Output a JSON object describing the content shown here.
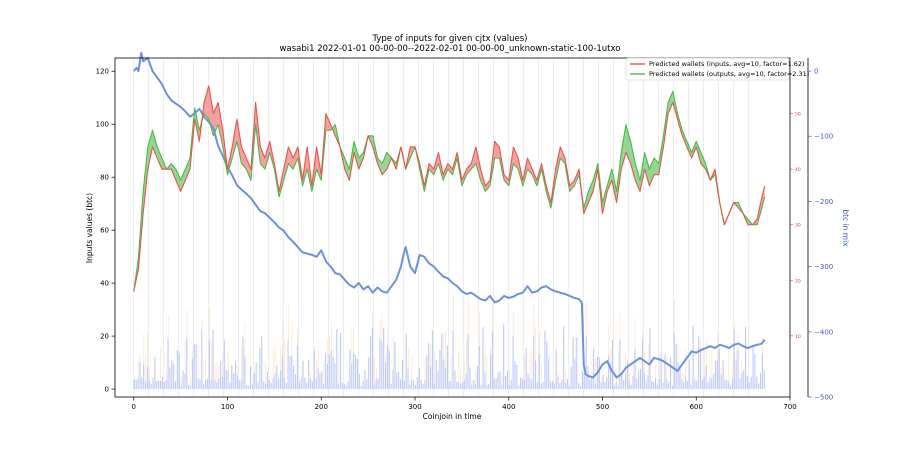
{
  "chart_data": {
    "type": "line",
    "title": "Type of inputs for given cjtx (values)",
    "subtitle": "wasabi1 2022-01-01 00-00-00--2022-02-01 00-00-00_unknown-static-100-1utxo",
    "xlabel": "Coinjoin in time",
    "ylabel": "Inputs values (btc)",
    "ylabel_right_inner": "",
    "ylabel_right_outer": "btc in mix",
    "xlim": [
      -20,
      700
    ],
    "ylim": [
      -3,
      125
    ],
    "ylim_right_inner": [
      -1,
      60
    ],
    "ylim_right_outer": [
      -500,
      20
    ],
    "x_ticks": [
      "0",
      "100",
      "200",
      "300",
      "400",
      "500",
      "600",
      "700"
    ],
    "y_ticks": [
      "0",
      "20",
      "40",
      "60",
      "80",
      "100",
      "120"
    ],
    "y_right_inner_ticks": [
      "10",
      "20",
      "30",
      "40",
      "50"
    ],
    "y_right_outer_ticks": [
      "0",
      "−100",
      "−200",
      "−300",
      "−400",
      "−500"
    ],
    "grid": "vertical lines",
    "legend_position": "top-right",
    "series": [
      {
        "name": "Predicted wallets (inputs, avg=10, factor=1.62)",
        "color": "#e8554a",
        "axis": "right-inner",
        "x": [
          0,
          5,
          10,
          15,
          20,
          25,
          30,
          35,
          40,
          45,
          50,
          55,
          60,
          65,
          70,
          75,
          80,
          85,
          90,
          95,
          100,
          105,
          110,
          115,
          120,
          125,
          130,
          135,
          140,
          145,
          150,
          155,
          160,
          165,
          170,
          175,
          180,
          185,
          190,
          195,
          200,
          205,
          210,
          215,
          220,
          225,
          230,
          235,
          240,
          245,
          250,
          255,
          260,
          265,
          270,
          275,
          280,
          285,
          290,
          295,
          300,
          305,
          310,
          315,
          320,
          325,
          330,
          335,
          340,
          345,
          350,
          355,
          360,
          365,
          370,
          375,
          380,
          385,
          390,
          395,
          400,
          405,
          410,
          415,
          420,
          425,
          430,
          435,
          440,
          445,
          450,
          455,
          460,
          465,
          470,
          475,
          480,
          485,
          490,
          495,
          500,
          505,
          510,
          515,
          520,
          525,
          530,
          535,
          540,
          545,
          550,
          555,
          560,
          565,
          570,
          575,
          580,
          585,
          590,
          595,
          600,
          605,
          610,
          615,
          620,
          625,
          630,
          635,
          640,
          645,
          650,
          655,
          660,
          665,
          670,
          673
        ],
        "values": [
          18,
          22,
          32,
          40,
          44,
          42,
          40,
          40,
          40,
          38,
          36,
          38,
          40,
          49,
          45,
          52,
          55,
          50,
          52,
          47,
          40,
          44,
          49,
          44,
          42,
          40,
          52,
          44,
          42,
          45,
          41,
          36,
          40,
          44,
          42,
          44,
          38,
          44,
          37,
          44,
          39,
          50,
          48,
          46,
          44,
          40,
          38,
          43,
          40,
          42,
          46,
          44,
          41,
          39,
          40,
          42,
          40,
          44,
          40,
          44,
          44,
          41,
          37,
          41,
          40,
          43,
          39,
          41,
          40,
          43,
          38,
          40,
          41,
          44,
          40,
          37,
          38,
          45,
          44,
          39,
          38,
          44,
          42,
          38,
          42,
          40,
          38,
          41,
          37,
          34,
          40,
          44,
          42,
          37,
          38,
          40,
          32,
          34,
          36,
          40,
          32,
          36,
          38,
          34,
          40,
          43,
          41,
          38,
          36,
          40,
          37,
          39,
          39,
          44,
          50,
          52,
          49,
          46,
          44,
          42,
          44,
          41,
          40,
          38,
          40,
          34,
          30,
          32,
          34,
          33,
          32,
          30,
          30,
          31,
          35,
          37
        ]
      },
      {
        "name": "Predicted wallets (outputs, avg=10, factor=2.31)",
        "color": "#4fb84f",
        "axis": "right-inner",
        "x": [
          0,
          5,
          10,
          15,
          20,
          25,
          30,
          35,
          40,
          45,
          50,
          55,
          60,
          65,
          70,
          75,
          80,
          85,
          90,
          95,
          100,
          105,
          110,
          115,
          120,
          125,
          130,
          135,
          140,
          145,
          150,
          155,
          160,
          165,
          170,
          175,
          180,
          185,
          190,
          195,
          200,
          205,
          210,
          215,
          220,
          225,
          230,
          235,
          240,
          245,
          250,
          255,
          260,
          265,
          270,
          275,
          280,
          285,
          290,
          295,
          300,
          305,
          310,
          315,
          320,
          325,
          330,
          335,
          340,
          345,
          350,
          355,
          360,
          365,
          370,
          375,
          380,
          385,
          390,
          395,
          400,
          405,
          410,
          415,
          420,
          425,
          430,
          435,
          440,
          445,
          450,
          455,
          460,
          465,
          470,
          475,
          480,
          485,
          490,
          495,
          500,
          505,
          510,
          515,
          520,
          525,
          530,
          535,
          540,
          545,
          550,
          555,
          560,
          565,
          570,
          575,
          580,
          585,
          590,
          595,
          600,
          605,
          610,
          615,
          620,
          625,
          630,
          635,
          640,
          645,
          650,
          655,
          660,
          665,
          670,
          673
        ],
        "values": [
          18,
          24,
          36,
          44,
          47,
          44,
          42,
          40,
          41,
          40,
          38,
          40,
          42,
          51,
          47,
          50,
          49,
          46,
          48,
          44,
          39,
          42,
          45,
          41,
          40,
          38,
          48,
          41,
          40,
          43,
          40,
          35,
          38,
          41,
          40,
          42,
          37,
          40,
          36,
          40,
          38,
          47,
          47,
          48,
          44,
          42,
          40,
          45,
          42,
          43,
          46,
          46,
          42,
          41,
          43,
          42,
          41,
          44,
          40,
          42,
          44,
          40,
          36,
          40,
          39,
          41,
          38,
          40,
          39,
          42,
          37,
          39,
          40,
          41,
          38,
          36,
          37,
          42,
          42,
          38,
          37,
          41,
          40,
          37,
          40,
          39,
          37,
          40,
          36,
          33,
          38,
          42,
          41,
          36,
          37,
          39,
          33,
          36,
          38,
          41,
          34,
          37,
          40,
          36,
          43,
          48,
          45,
          41,
          38,
          43,
          40,
          42,
          41,
          46,
          52,
          54,
          50,
          47,
          45,
          43,
          45,
          43,
          41,
          38,
          39,
          34,
          30,
          32,
          34,
          34,
          32,
          31,
          30,
          30,
          33,
          35
        ]
      },
      {
        "name": "",
        "color": "#6f8fe0",
        "axis": "right-outer",
        "x": [
          0,
          3,
          5,
          8,
          10,
          15,
          20,
          25,
          30,
          35,
          40,
          45,
          50,
          55,
          60,
          65,
          70,
          75,
          80,
          85,
          90,
          95,
          100,
          105,
          110,
          115,
          120,
          125,
          130,
          135,
          140,
          145,
          150,
          155,
          160,
          165,
          170,
          175,
          180,
          185,
          190,
          195,
          200,
          205,
          210,
          215,
          220,
          225,
          230,
          235,
          240,
          245,
          250,
          255,
          260,
          265,
          270,
          275,
          280,
          285,
          288,
          290,
          295,
          300,
          305,
          310,
          315,
          320,
          325,
          330,
          335,
          340,
          345,
          350,
          355,
          360,
          365,
          370,
          375,
          380,
          385,
          390,
          395,
          400,
          405,
          410,
          415,
          420,
          425,
          430,
          435,
          440,
          445,
          450,
          455,
          460,
          465,
          470,
          475,
          478,
          480,
          482,
          485,
          490,
          495,
          500,
          505,
          510,
          515,
          520,
          525,
          530,
          535,
          540,
          545,
          550,
          555,
          560,
          565,
          570,
          575,
          580,
          585,
          590,
          595,
          600,
          605,
          610,
          615,
          620,
          625,
          630,
          635,
          640,
          645,
          650,
          655,
          660,
          665,
          670,
          673
        ],
        "values": [
          0,
          5,
          0,
          28,
          15,
          20,
          0,
          -10,
          -20,
          -35,
          -45,
          -50,
          -55,
          -62,
          -70,
          -65,
          -58,
          -70,
          -78,
          -88,
          -115,
          -130,
          -148,
          -160,
          -175,
          -182,
          -188,
          -195,
          -205,
          -215,
          -218,
          -225,
          -232,
          -240,
          -245,
          -255,
          -262,
          -270,
          -278,
          -280,
          -282,
          -285,
          -275,
          -292,
          -300,
          -310,
          -312,
          -320,
          -328,
          -332,
          -325,
          -335,
          -330,
          -340,
          -332,
          -338,
          -340,
          -330,
          -320,
          -300,
          -280,
          -270,
          -300,
          -310,
          -282,
          -285,
          -295,
          -300,
          -308,
          -315,
          -318,
          -325,
          -330,
          -338,
          -342,
          -340,
          -345,
          -350,
          -352,
          -345,
          -355,
          -352,
          -345,
          -348,
          -346,
          -342,
          -340,
          -330,
          -340,
          -338,
          -332,
          -330,
          -335,
          -338,
          -340,
          -342,
          -345,
          -348,
          -350,
          -355,
          -450,
          -465,
          -468,
          -470,
          -462,
          -450,
          -445,
          -460,
          -470,
          -465,
          -455,
          -450,
          -445,
          -440,
          -445,
          -450,
          -440,
          -442,
          -445,
          -450,
          -455,
          -460,
          -450,
          -440,
          -430,
          -432,
          -428,
          -425,
          -422,
          -425,
          -420,
          -422,
          -425,
          -420,
          -418,
          -422,
          -425,
          -422,
          -420,
          -418,
          -412
        ]
      }
    ]
  }
}
